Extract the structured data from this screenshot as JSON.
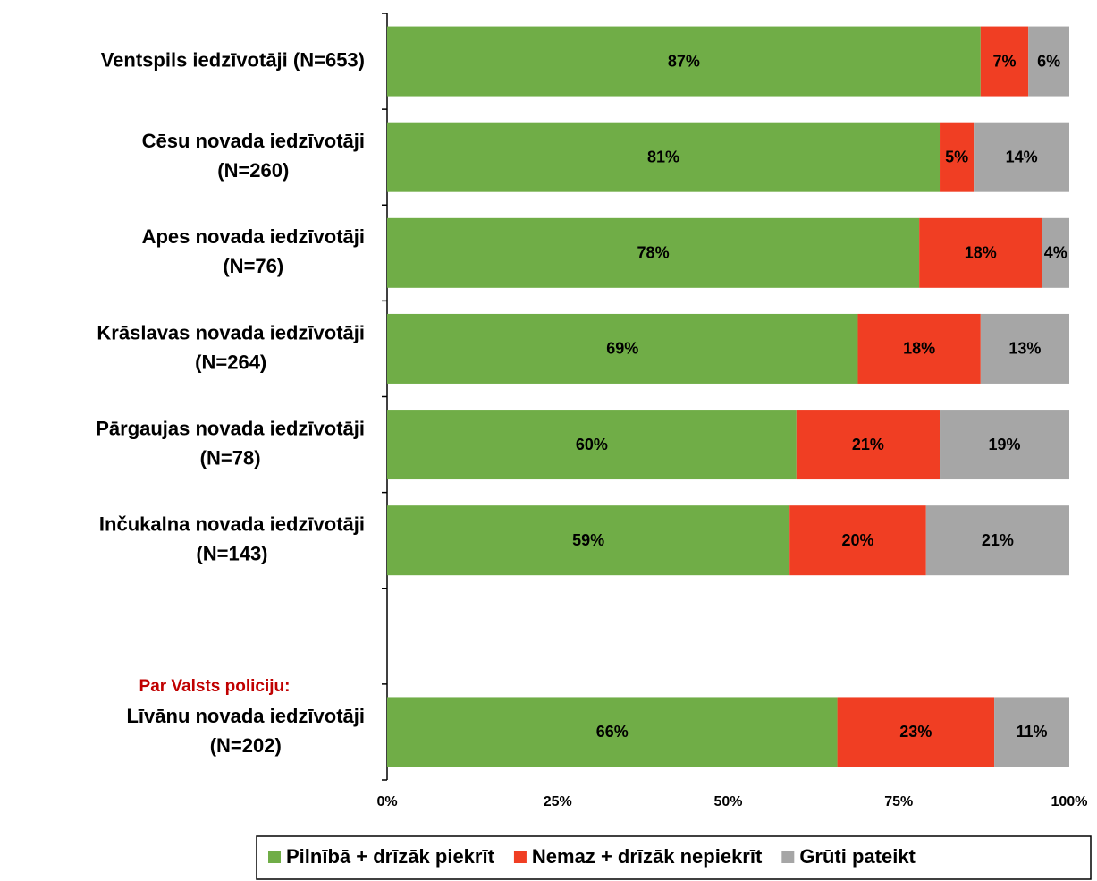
{
  "chart_data": {
    "type": "stacked-bar-horizontal",
    "categories": [
      [
        "Ventspils iedzīvotāji (N=653)"
      ],
      [
        "Cēsu novada iedzīvotāji",
        "(N=260)"
      ],
      [
        "Apes novada iedzīvotāji",
        "(N=76)"
      ],
      [
        "Krāslavas novada iedzīvotāji",
        "(N=264)"
      ],
      [
        "Pārgaujas novada iedzīvotāji",
        "(N=78)"
      ],
      [
        "Inčukalna novada iedzīvotāji",
        "(N=143)"
      ],
      null,
      [
        "Līvānu novada iedzīvotāji",
        "(N=202)"
      ]
    ],
    "annotation": "Par Valsts policiju:",
    "series": [
      {
        "name": "Pilnībā + drīzāk piekrīt",
        "color": "#70ad47",
        "values": [
          87,
          81,
          78,
          69,
          60,
          59,
          null,
          66
        ],
        "value_labels": [
          "87%",
          "81%",
          "78%",
          "69%",
          "60%",
          "59%",
          null,
          "66%"
        ]
      },
      {
        "name": "Nemaz + drīzāk nepiekrīt",
        "color": "#f03e23",
        "values": [
          7,
          5,
          18,
          18,
          21,
          20,
          null,
          23
        ],
        "value_labels": [
          "7%",
          "5%",
          "18%",
          "18%",
          "21%",
          "20%",
          null,
          "23%"
        ]
      },
      {
        "name": "Grūti pateikt",
        "color": "#a6a6a6",
        "values": [
          6,
          14,
          4,
          13,
          19,
          21,
          null,
          11
        ],
        "value_labels": [
          "6%",
          "14%",
          "4%",
          "13%",
          "19%",
          "21%",
          null,
          "11%"
        ]
      }
    ],
    "xlim": [
      0,
      100
    ],
    "xticks": [
      {
        "value": 0,
        "label": "0%"
      },
      {
        "value": 25,
        "label": "25%"
      },
      {
        "value": 50,
        "label": "50%"
      },
      {
        "value": 75,
        "label": "75%"
      },
      {
        "value": 100,
        "label": "100%"
      }
    ],
    "legend": "bottom"
  }
}
